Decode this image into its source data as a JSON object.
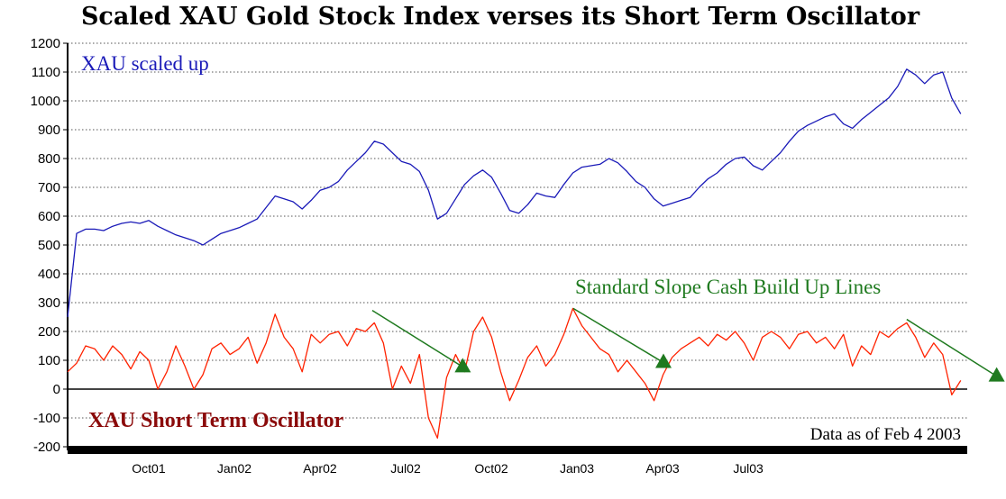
{
  "chart_data": {
    "type": "line",
    "title": "Scaled XAU Gold Stock Index verses its Short Term Oscillator",
    "xlabel": "",
    "ylabel": "",
    "ylim": [
      -200,
      1200
    ],
    "yticks": [
      -200,
      -100,
      0,
      100,
      200,
      300,
      400,
      500,
      600,
      700,
      800,
      900,
      1000,
      1100,
      1200
    ],
    "x_unit": "months since Jul 2001",
    "xlim": [
      0.16,
      31.67
    ],
    "xticks": [
      {
        "x": 3,
        "label": "Oct01"
      },
      {
        "x": 6,
        "label": "Jan02"
      },
      {
        "x": 9,
        "label": "Apr02"
      },
      {
        "x": 12,
        "label": "Jul02"
      },
      {
        "x": 15,
        "label": "Oct02"
      },
      {
        "x": 18,
        "label": "Jan03"
      },
      {
        "x": 21,
        "label": "Apr03"
      },
      {
        "x": 24,
        "label": "Jul03"
      }
    ],
    "grid": true,
    "x_start": 0.16,
    "x_step": 0.316,
    "series": [
      {
        "name": "XAU scaled up",
        "color": "#1a1ab8",
        "values": [
          250,
          540,
          555,
          555,
          550,
          565,
          575,
          580,
          575,
          585,
          565,
          550,
          535,
          525,
          515,
          500,
          520,
          540,
          550,
          560,
          575,
          590,
          630,
          670,
          660,
          650,
          625,
          655,
          690,
          700,
          720,
          760,
          790,
          820,
          860,
          850,
          820,
          790,
          780,
          755,
          690,
          590,
          610,
          660,
          710,
          740,
          760,
          735,
          680,
          620,
          610,
          640,
          680,
          670,
          665,
          710,
          750,
          770,
          775,
          780,
          800,
          785,
          755,
          720,
          700,
          660,
          635,
          645,
          655,
          665,
          700,
          730,
          750,
          780,
          800,
          805,
          775,
          760,
          790,
          820,
          860,
          895,
          915,
          930,
          945,
          955,
          920,
          905,
          935,
          960,
          985,
          1010,
          1050,
          1110,
          1090,
          1060,
          1090,
          1100,
          1010,
          955
        ]
      },
      {
        "name": "XAU Short Term Oscillator",
        "color": "#ff2200",
        "values": [
          60,
          90,
          150,
          140,
          100,
          150,
          120,
          70,
          130,
          100,
          0,
          60,
          150,
          80,
          0,
          50,
          140,
          160,
          120,
          140,
          180,
          90,
          160,
          260,
          180,
          140,
          60,
          190,
          160,
          190,
          200,
          150,
          210,
          200,
          230,
          160,
          0,
          80,
          20,
          120,
          -100,
          -170,
          40,
          120,
          60,
          200,
          250,
          180,
          60,
          -40,
          30,
          110,
          150,
          80,
          120,
          190,
          280,
          220,
          180,
          140,
          120,
          60,
          100,
          60,
          20,
          -40,
          50,
          110,
          140,
          160,
          180,
          150,
          190,
          170,
          200,
          160,
          100,
          180,
          200,
          180,
          140,
          190,
          200,
          160,
          180,
          140,
          190,
          80,
          150,
          120,
          200,
          180,
          210,
          230,
          180,
          110,
          160,
          120,
          -20,
          30
        ]
      }
    ],
    "slope_lines": {
      "name": "Standard Slope Cash Build Up Lines",
      "color": "#1f7a1f",
      "lines": [
        {
          "x1": 10.83,
          "y1": 273,
          "x2": 14.0,
          "y2": 77
        },
        {
          "x1": 17.87,
          "y1": 280,
          "x2": 21.03,
          "y2": 92
        },
        {
          "x1": 29.55,
          "y1": 242,
          "x2": 32.7,
          "y2": 45
        }
      ]
    },
    "annotations": {
      "xau_label": "XAU scaled up",
      "slope_label": "Standard Slope Cash Build Up Lines",
      "osc_label": "XAU Short Term Oscillator",
      "date_note": "Data as of Feb 4 2003"
    }
  }
}
